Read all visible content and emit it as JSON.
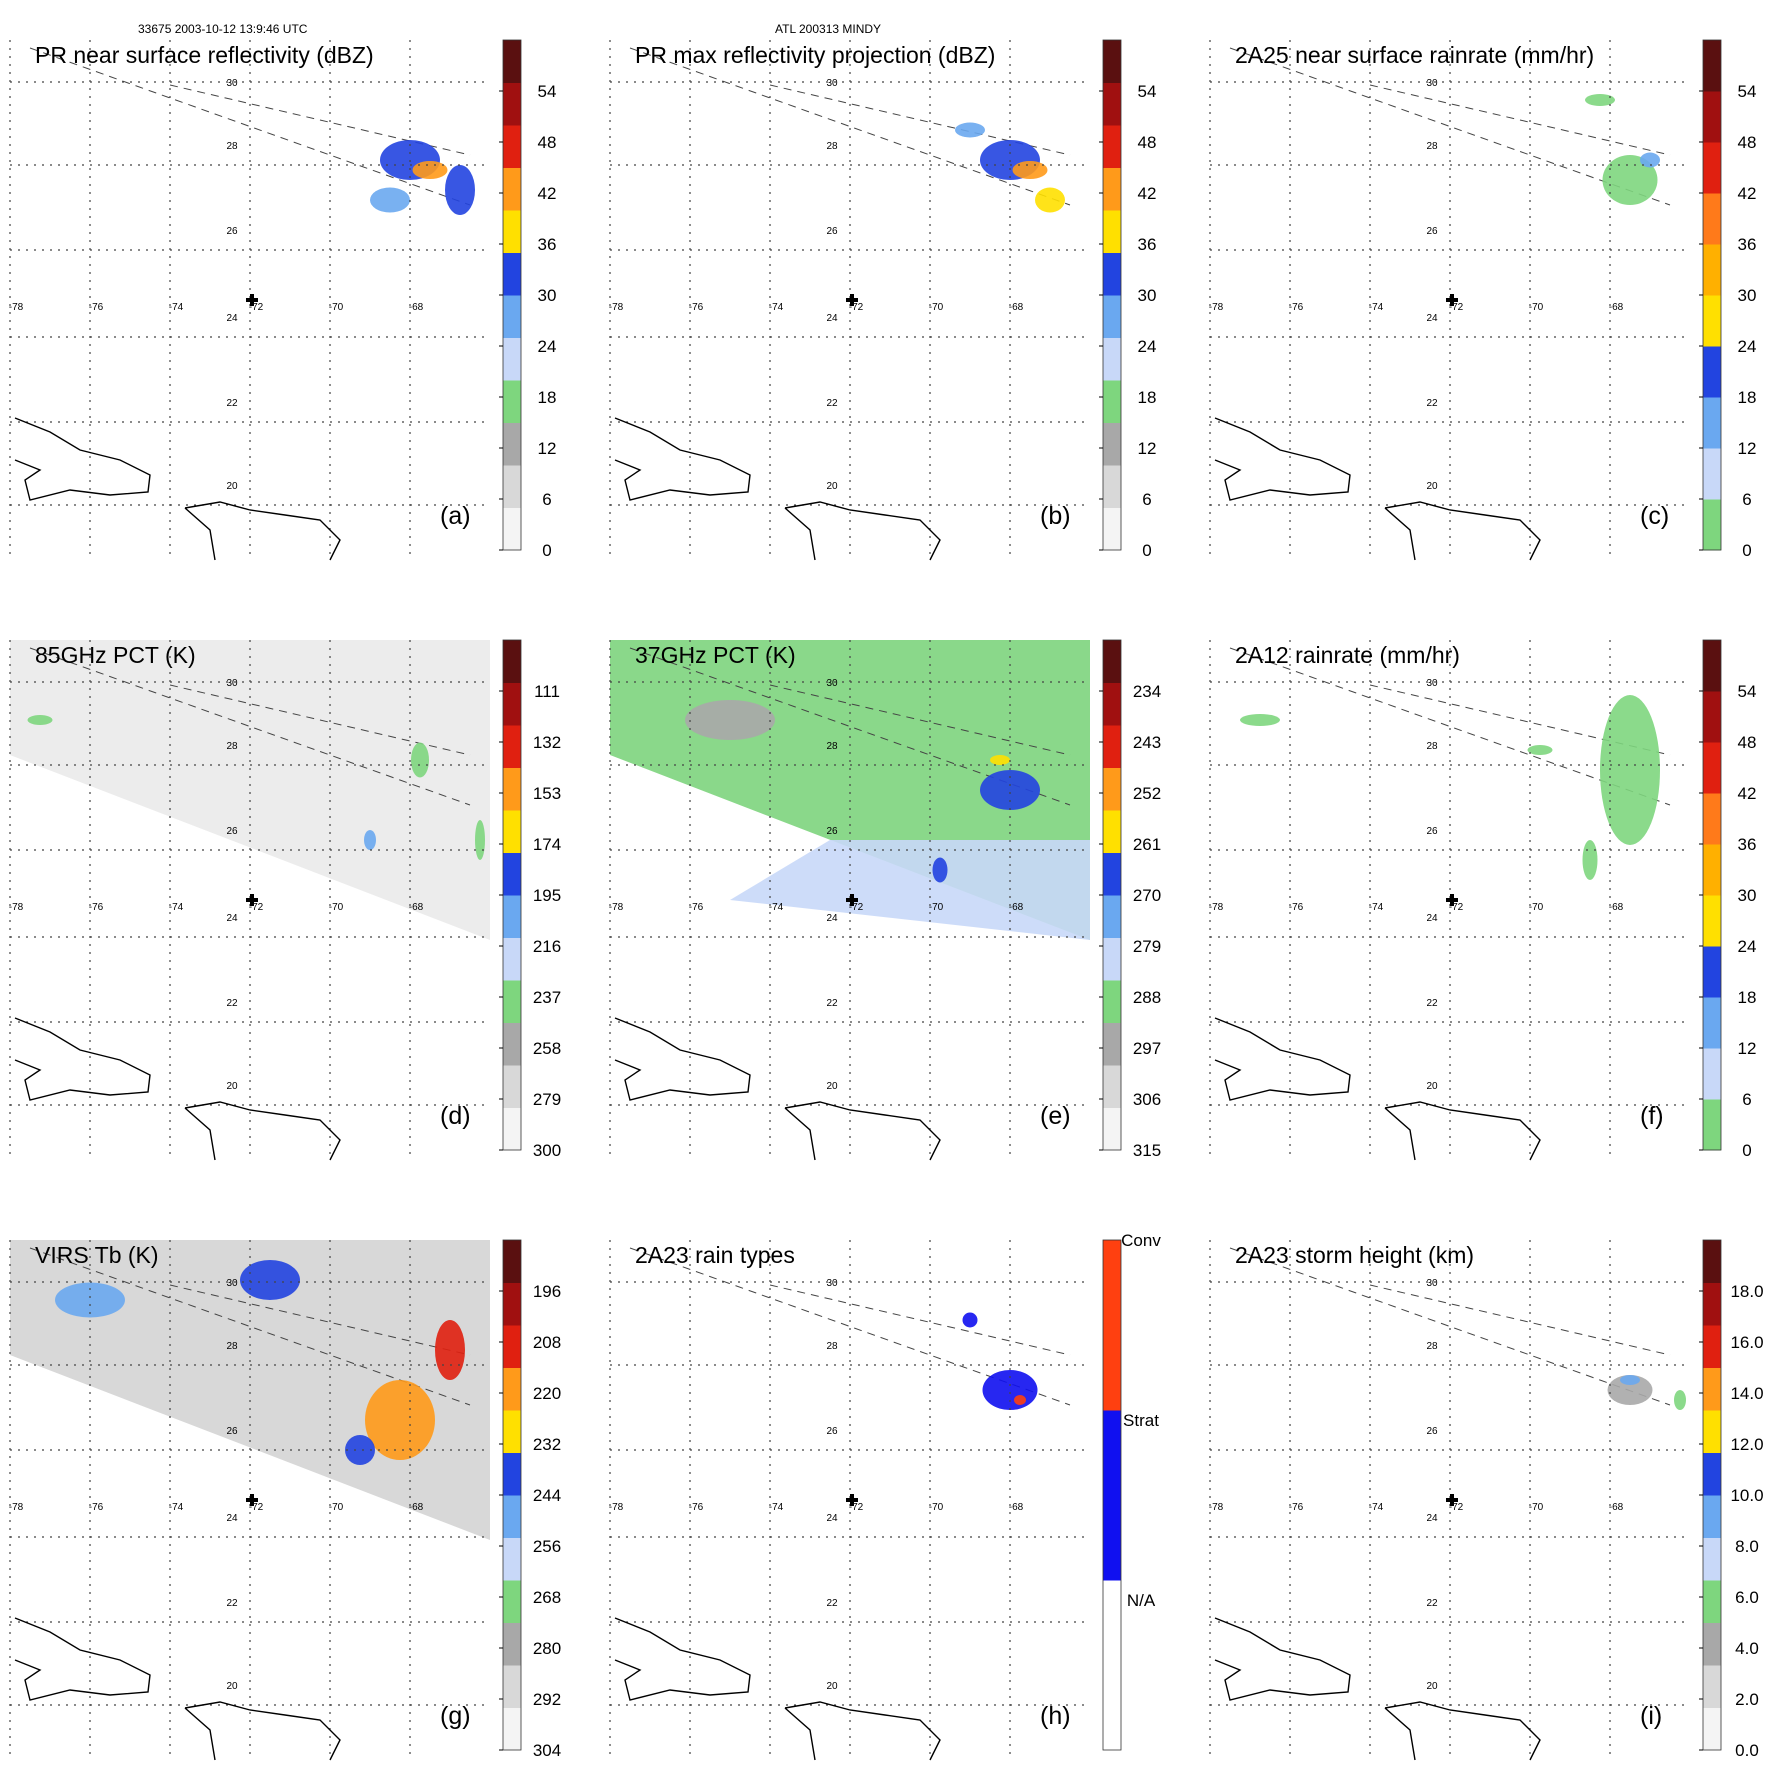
{
  "header": {
    "orbit_info": "33675 2003-10-12 13:9:46 UTC",
    "storm_info": "ATL 200313 MINDY"
  },
  "map": {
    "lon_labels": [
      "-78",
      "-76",
      "-74",
      "-72",
      "-70",
      "-68"
    ],
    "lat_labels": [
      "30",
      "28",
      "26",
      "24",
      "22",
      "20"
    ],
    "storm_center_marker": "plus-icon"
  },
  "panels": [
    {
      "id": "a",
      "title": "PR near surface reflectivity (dBZ)",
      "label": "(a)",
      "colorbar": [
        "0",
        "6",
        "12",
        "18",
        "24",
        "30",
        "36",
        "42",
        "48",
        "54"
      ],
      "colors": [
        "#f4f4f4",
        "#d8d8d8",
        "#a8a8a8",
        "#7ed67e",
        "#c8d8f8",
        "#6aa8f0",
        "#2244e0",
        "#ffe000",
        "#ff9a1a",
        "#e02010",
        "#a01010",
        "#5a1010"
      ]
    },
    {
      "id": "b",
      "title": "PR max reflectivity projection (dBZ)",
      "label": "(b)",
      "colorbar": [
        "0",
        "6",
        "12",
        "18",
        "24",
        "30",
        "36",
        "42",
        "48",
        "54"
      ],
      "colors": [
        "#f4f4f4",
        "#d8d8d8",
        "#a8a8a8",
        "#7ed67e",
        "#c8d8f8",
        "#6aa8f0",
        "#2244e0",
        "#ffe000",
        "#ff9a1a",
        "#e02010",
        "#a01010",
        "#5a1010"
      ]
    },
    {
      "id": "c",
      "title": "2A25 near surface rainrate (mm/hr)",
      "label": "(c)",
      "colorbar": [
        "0",
        "6",
        "12",
        "18",
        "24",
        "30",
        "36",
        "42",
        "48",
        "54"
      ],
      "colors": [
        "#7ed67e",
        "#c8d8f8",
        "#6aa8f0",
        "#2244e0",
        "#ffe000",
        "#ffb000",
        "#ff7a1a",
        "#e02010",
        "#a01010",
        "#5a1010"
      ]
    },
    {
      "id": "d",
      "title": "85GHz PCT (K)",
      "label": "(d)",
      "colorbar": [
        "300",
        "279",
        "258",
        "237",
        "216",
        "195",
        "174",
        "153",
        "132",
        "111"
      ],
      "colors": [
        "#f4f4f4",
        "#d8d8d8",
        "#a8a8a8",
        "#7ed67e",
        "#c8d8f8",
        "#6aa8f0",
        "#2244e0",
        "#ffe000",
        "#ff9a1a",
        "#e02010",
        "#a01010",
        "#5a1010"
      ]
    },
    {
      "id": "e",
      "title": "37GHz PCT (K)",
      "label": "(e)",
      "colorbar": [
        "315",
        "306",
        "297",
        "288",
        "279",
        "270",
        "261",
        "252",
        "243",
        "234"
      ],
      "colors": [
        "#f4f4f4",
        "#d8d8d8",
        "#a8a8a8",
        "#7ed67e",
        "#c8d8f8",
        "#6aa8f0",
        "#2244e0",
        "#ffe000",
        "#ff9a1a",
        "#e02010",
        "#a01010",
        "#5a1010"
      ]
    },
    {
      "id": "f",
      "title": "2A12 rainrate (mm/hr)",
      "label": "(f)",
      "colorbar": [
        "0",
        "6",
        "12",
        "18",
        "24",
        "30",
        "36",
        "42",
        "48",
        "54"
      ],
      "colors": [
        "#7ed67e",
        "#c8d8f8",
        "#6aa8f0",
        "#2244e0",
        "#ffe000",
        "#ffb000",
        "#ff7a1a",
        "#e02010",
        "#a01010",
        "#5a1010"
      ]
    },
    {
      "id": "g",
      "title": "VIRS Tb (K)",
      "label": "(g)",
      "colorbar": [
        "304",
        "292",
        "280",
        "268",
        "256",
        "244",
        "232",
        "220",
        "208",
        "196"
      ],
      "colors": [
        "#f4f4f4",
        "#d8d8d8",
        "#a8a8a8",
        "#7ed67e",
        "#c8d8f8",
        "#6aa8f0",
        "#2244e0",
        "#ffe000",
        "#ff9a1a",
        "#e02010",
        "#a01010",
        "#5a1010"
      ]
    },
    {
      "id": "h",
      "title": "2A23 rain types",
      "label": "(h)",
      "colorbar_categories": [
        "N/A",
        "Strat",
        "Conv"
      ],
      "colors": [
        "#ffffff",
        "#1010f0",
        "#ff4010"
      ]
    },
    {
      "id": "i",
      "title": "2A23 storm height (km)",
      "label": "(i)",
      "colorbar": [
        "0.0",
        "2.0",
        "4.0",
        "6.0",
        "8.0",
        "10.0",
        "12.0",
        "14.0",
        "16.0",
        "18.0"
      ],
      "colors": [
        "#f4f4f4",
        "#d8d8d8",
        "#a8a8a8",
        "#7ed67e",
        "#c8d8f8",
        "#6aa8f0",
        "#2244e0",
        "#ffe000",
        "#ff9a1a",
        "#e02010",
        "#a01010",
        "#5a1010"
      ]
    }
  ]
}
